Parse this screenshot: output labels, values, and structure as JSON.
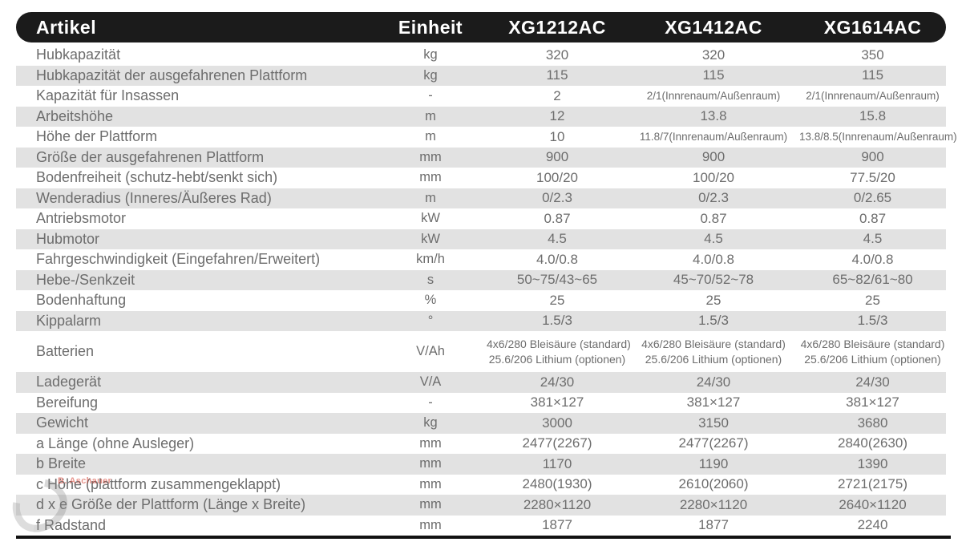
{
  "table": {
    "header": {
      "artikel": "Artikel",
      "einheit": "Einheit",
      "models": [
        "XG1212AC",
        "XG1412AC",
        "XG1614AC"
      ]
    },
    "rows": [
      {
        "label": "Hubkapazität",
        "unit": "kg",
        "values": [
          "320",
          "320",
          "350"
        ]
      },
      {
        "label": "Hubkapazität der ausgefahrenen Plattform",
        "unit": "kg",
        "values": [
          "115",
          "115",
          "115"
        ]
      },
      {
        "label": "Kapazität für Insassen",
        "unit": "-",
        "values": [
          "2",
          "2/1(Innrenaum/Außenraum)",
          "2/1(Innrenaum/Außenraum)"
        ]
      },
      {
        "label": "Arbeitshöhe",
        "unit": "m",
        "values": [
          "12",
          "13.8",
          "15.8"
        ]
      },
      {
        "label": "Höhe der Plattform",
        "unit": "m",
        "values": [
          "10",
          "11.8/7(Innrenaum/Außenraum)",
          "13.8/8.5(Innrenaum/Außenraum)"
        ]
      },
      {
        "label": "Größe der ausgefahrenen Plattform",
        "unit": "mm",
        "values": [
          "900",
          "900",
          "900"
        ]
      },
      {
        "label": "Bodenfreiheit (schutz-hebt/senkt sich)",
        "unit": "mm",
        "values": [
          "100/20",
          "100/20",
          "77.5/20"
        ]
      },
      {
        "label": "Wenderadius (Inneres/Äußeres Rad)",
        "unit": "m",
        "values": [
          "0/2.3",
          "0/2.3",
          "0/2.65"
        ]
      },
      {
        "label": "Antriebsmotor",
        "unit": "kW",
        "values": [
          "0.87",
          "0.87",
          "0.87"
        ]
      },
      {
        "label": "Hubmotor",
        "unit": "kW",
        "values": [
          "4.5",
          "4.5",
          "4.5"
        ]
      },
      {
        "label": "Fahrgeschwindigkeit (Eingefahren/Erweitert)",
        "unit": "km/h",
        "values": [
          "4.0/0.8",
          "4.0/0.8",
          "4.0/0.8"
        ]
      },
      {
        "label": "Hebe-/Senkzeit",
        "unit": "s",
        "values": [
          "50~75/43~65",
          "45~70/52~78",
          "65~82/61~80"
        ]
      },
      {
        "label": "Bodenhaftung",
        "unit": "%",
        "values": [
          "25",
          "25",
          "25"
        ]
      },
      {
        "label": "Kippalarm",
        "unit": "°",
        "values": [
          "1.5/3",
          "1.5/3",
          "1.5/3"
        ]
      },
      {
        "label": "Batterien",
        "unit": "V/Ah",
        "values": [
          [
            "4x6/280 Bleisäure (standard)",
            "25.6/206 Lithium (optionen)"
          ],
          [
            "4x6/280 Bleisäure (standard)",
            "25.6/206 Lithium (optionen)"
          ],
          [
            "4x6/280 Bleisäure (standard)",
            "25.6/206 Lithium (optionen)"
          ]
        ]
      },
      {
        "label": "Ladegerät",
        "unit": "V/A",
        "values": [
          "24/30",
          "24/30",
          "24/30"
        ]
      },
      {
        "label": "Bereifung",
        "unit": "-",
        "values": [
          "381×127",
          "381×127",
          "381×127"
        ]
      },
      {
        "label": "Gewicht",
        "unit": "kg",
        "values": [
          "3000",
          "3150",
          "3680"
        ]
      },
      {
        "label": "a Länge (ohne Ausleger)",
        "unit": "mm",
        "values": [
          "2477(2267)",
          "2477(2267)",
          "2840(2630)"
        ]
      },
      {
        "label": "b Breite",
        "unit": "mm",
        "values": [
          "1170",
          "1190",
          "1390"
        ]
      },
      {
        "label": "c Höhe (plattform zusammengeklappt)",
        "unit": "mm",
        "values": [
          "2480(1930)",
          "2610(2060)",
          "2721(2175)"
        ]
      },
      {
        "label": "d x e Größe der Plattform (Länge x Breite)",
        "unit": "mm",
        "values": [
          "2280×1120",
          "2280×1120",
          "2640×1120"
        ]
      },
      {
        "label": "f Radstand",
        "unit": "mm",
        "values": [
          "1877",
          "1877",
          "2240"
        ]
      }
    ]
  },
  "watermark": {
    "name": "B. Aschauer"
  }
}
